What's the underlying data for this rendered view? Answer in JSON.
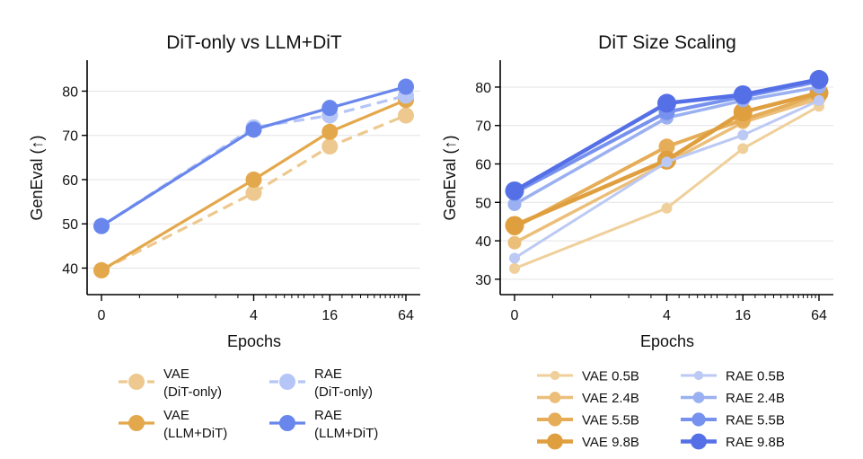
{
  "chart_data": [
    {
      "type": "line",
      "title": "DiT-only vs LLM+DiT",
      "xlabel": "Epochs",
      "ylabel": "GenEval (↑)",
      "x_scale": "symlog",
      "xticks": [
        0,
        4,
        16,
        64
      ],
      "xtick_labels": [
        "0",
        "4",
        "16",
        "64"
      ],
      "ylim": [
        34,
        87
      ],
      "yticks": [
        40,
        50,
        60,
        70,
        80
      ],
      "grid": "horizontal",
      "series": [
        {
          "name": "VAE (DiT-only)",
          "legend": [
            "VAE",
            "(DiT-only)"
          ],
          "color": "#EDC98F",
          "style": "dashed",
          "marker_size": "large",
          "x": [
            0,
            4,
            16,
            64
          ],
          "y": [
            39.5,
            57.0,
            67.5,
            74.5
          ]
        },
        {
          "name": "VAE (LLM+DiT)",
          "legend": [
            "VAE",
            "(LLM+DiT)"
          ],
          "color": "#E4A84C",
          "style": "solid",
          "marker_size": "large",
          "x": [
            0,
            4,
            16,
            64
          ],
          "y": [
            39.5,
            60.0,
            70.8,
            78.0
          ]
        },
        {
          "name": "RAE (DiT-only)",
          "legend": [
            "RAE",
            "(DiT-only)"
          ],
          "color": "#B5C5F7",
          "style": "dashed",
          "marker_size": "large",
          "x": [
            0,
            4,
            16,
            64
          ],
          "y": [
            49.5,
            71.8,
            74.5,
            79.0
          ]
        },
        {
          "name": "RAE (LLM+DiT)",
          "legend": [
            "RAE",
            "(LLM+DiT)"
          ],
          "color": "#6886EC",
          "style": "solid",
          "marker_size": "large",
          "x": [
            0,
            4,
            16,
            64
          ],
          "y": [
            49.5,
            71.3,
            76.2,
            81.0
          ]
        }
      ]
    },
    {
      "type": "line",
      "title": "DiT Size Scaling",
      "xlabel": "Epochs",
      "ylabel": "GenEval (↑)",
      "x_scale": "symlog",
      "xticks": [
        0,
        4,
        16,
        64
      ],
      "xtick_labels": [
        "0",
        "4",
        "16",
        "64"
      ],
      "ylim": [
        26,
        87
      ],
      "yticks": [
        30,
        40,
        50,
        60,
        70,
        80
      ],
      "grid": "horizontal",
      "series": [
        {
          "name": "VAE 0.5B",
          "color": "#EFCF9A",
          "style": "solid",
          "marker_size": "small",
          "x": [
            0,
            4,
            16,
            64
          ],
          "y": [
            32.8,
            48.5,
            64.0,
            75.0
          ]
        },
        {
          "name": "VAE 2.4B",
          "color": "#EBBE79",
          "style": "solid",
          "marker_size": "medium",
          "x": [
            0,
            4,
            16,
            64
          ],
          "y": [
            39.5,
            60.3,
            70.8,
            77.0
          ]
        },
        {
          "name": "VAE 5.5B",
          "color": "#E6AD58",
          "style": "solid",
          "marker_size": "large",
          "x": [
            0,
            4,
            16,
            64
          ],
          "y": [
            43.5,
            64.5,
            71.5,
            78.0
          ]
        },
        {
          "name": "VAE 9.8B",
          "color": "#DF9F3F",
          "style": "solid",
          "marker_size": "xlarge",
          "x": [
            0,
            4,
            16,
            64
          ],
          "y": [
            44.0,
            61.0,
            73.5,
            78.5
          ]
        },
        {
          "name": "RAE 0.5B",
          "color": "#BCC9F4",
          "style": "solid",
          "marker_size": "small",
          "x": [
            0,
            4,
            16,
            64
          ],
          "y": [
            35.5,
            60.5,
            67.5,
            76.5
          ]
        },
        {
          "name": "RAE 2.4B",
          "color": "#9AB0F1",
          "style": "solid",
          "marker_size": "medium",
          "x": [
            0,
            4,
            16,
            64
          ],
          "y": [
            49.5,
            72.0,
            76.5,
            80.0
          ]
        },
        {
          "name": "RAE 5.5B",
          "color": "#7792EE",
          "style": "solid",
          "marker_size": "large",
          "x": [
            0,
            4,
            16,
            64
          ],
          "y": [
            52.5,
            73.5,
            77.5,
            81.5
          ]
        },
        {
          "name": "RAE 9.8B",
          "color": "#5570E6",
          "style": "solid",
          "marker_size": "xlarge",
          "x": [
            0,
            4,
            16,
            64
          ],
          "y": [
            53.0,
            75.8,
            78.0,
            82.0
          ]
        }
      ]
    }
  ]
}
